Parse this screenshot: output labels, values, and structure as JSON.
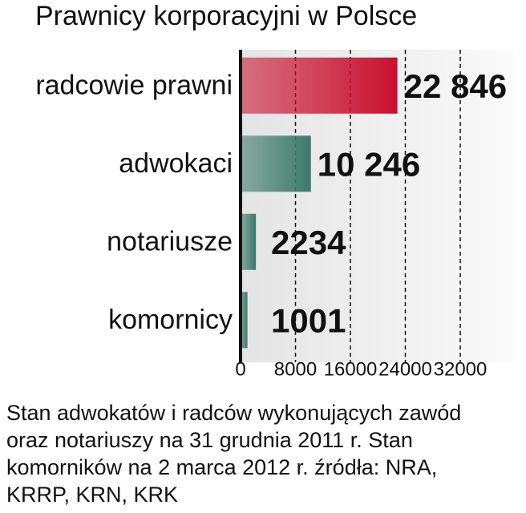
{
  "chart_data": {
    "type": "bar",
    "orientation": "horizontal",
    "title": "Prawnicy korporacyjni w Polsce",
    "categories": [
      "radcowie prawni",
      "adwokaci",
      "notariusze",
      "komornicy"
    ],
    "values": [
      22846,
      10246,
      2234,
      1001
    ],
    "value_labels": [
      "22 846",
      "10 246",
      "2234",
      "1001"
    ],
    "colors": [
      "#c8102e",
      "#3d7a69",
      "#3d7a69",
      "#3d7a69"
    ],
    "xlim": [
      0,
      32000
    ],
    "xticks": [
      0,
      8000,
      16000,
      24000,
      32000
    ],
    "grid": true,
    "note": [
      "Stan adwokatów i radców wykonujących zawód",
      "oraz notariuszy na 31 grudnia 2011 r. Stan",
      "komorników na 2 marca 2012 r.  źródła: NRA,",
      "KRRP, KRN, KRK"
    ]
  }
}
